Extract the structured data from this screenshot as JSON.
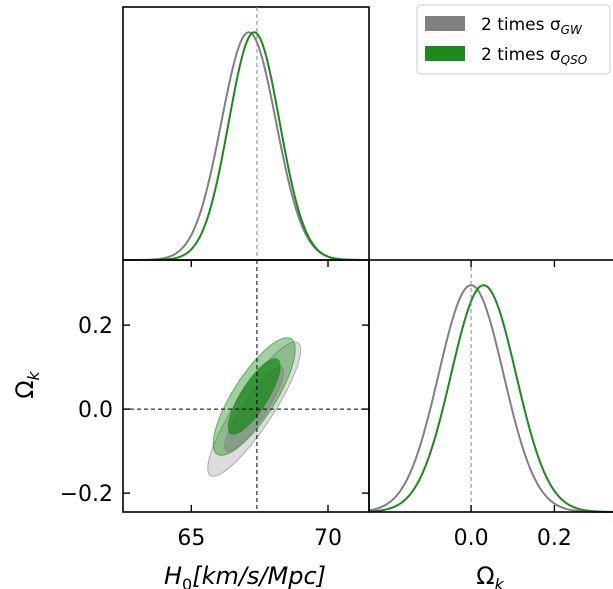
{
  "chart_data": {
    "type": "corner",
    "parameters": [
      {
        "name": "H0",
        "label_main": "H",
        "label_sub": "0",
        "label_rest": "[km/s/Mpc]",
        "range": [
          62.5,
          71.5
        ],
        "ticks": [
          65,
          70
        ],
        "tick_labels": [
          "65",
          "70"
        ],
        "reference": 67.4
      },
      {
        "name": "Omega_k",
        "label_main": "Ω",
        "label_sub": "k",
        "range": [
          -0.245,
          0.355
        ],
        "ticks": [
          -0.2,
          0.0,
          0.2
        ],
        "tick_labels": [
          "−0.2",
          "0.0",
          "0.2"
        ],
        "reference": 0.0
      }
    ],
    "series": [
      {
        "name_main": "2 times σ",
        "name_sub": "GW",
        "color": "#808080",
        "marginals": {
          "H0": {
            "mean": 67.1,
            "sd": 1.0,
            "peak": 0.9
          },
          "Omega_k": {
            "mean": 0.0,
            "sd": 0.078,
            "peak": 0.9
          }
        },
        "contours_2d": [
          {
            "level": "95%",
            "center": [
              67.3,
              0.0
            ],
            "sx": 1.7,
            "sy": 0.16,
            "corr": 0.88,
            "opacity": 0.28
          },
          {
            "level": "68%",
            "center": [
              67.3,
              0.0
            ],
            "sx": 1.08,
            "sy": 0.101,
            "corr": 0.88,
            "opacity": 0.5
          }
        ]
      },
      {
        "name_main": "2 times σ",
        "name_sub": "QSO",
        "color": "#1a8a1a",
        "marginals": {
          "H0": {
            "mean": 67.3,
            "sd": 0.93,
            "peak": 0.9
          },
          "Omega_k": {
            "mean": 0.03,
            "sd": 0.078,
            "peak": 0.9
          }
        },
        "contours_2d": [
          {
            "level": "95%",
            "center": [
              67.3,
              0.03
            ],
            "sx": 1.5,
            "sy": 0.14,
            "corr": 0.8,
            "opacity": 0.4
          },
          {
            "level": "68%",
            "center": [
              67.3,
              0.03
            ],
            "sx": 0.95,
            "sy": 0.09,
            "corr": 0.8,
            "opacity": 0.75
          }
        ]
      }
    ],
    "legend_position": "top-right",
    "grid": false
  }
}
